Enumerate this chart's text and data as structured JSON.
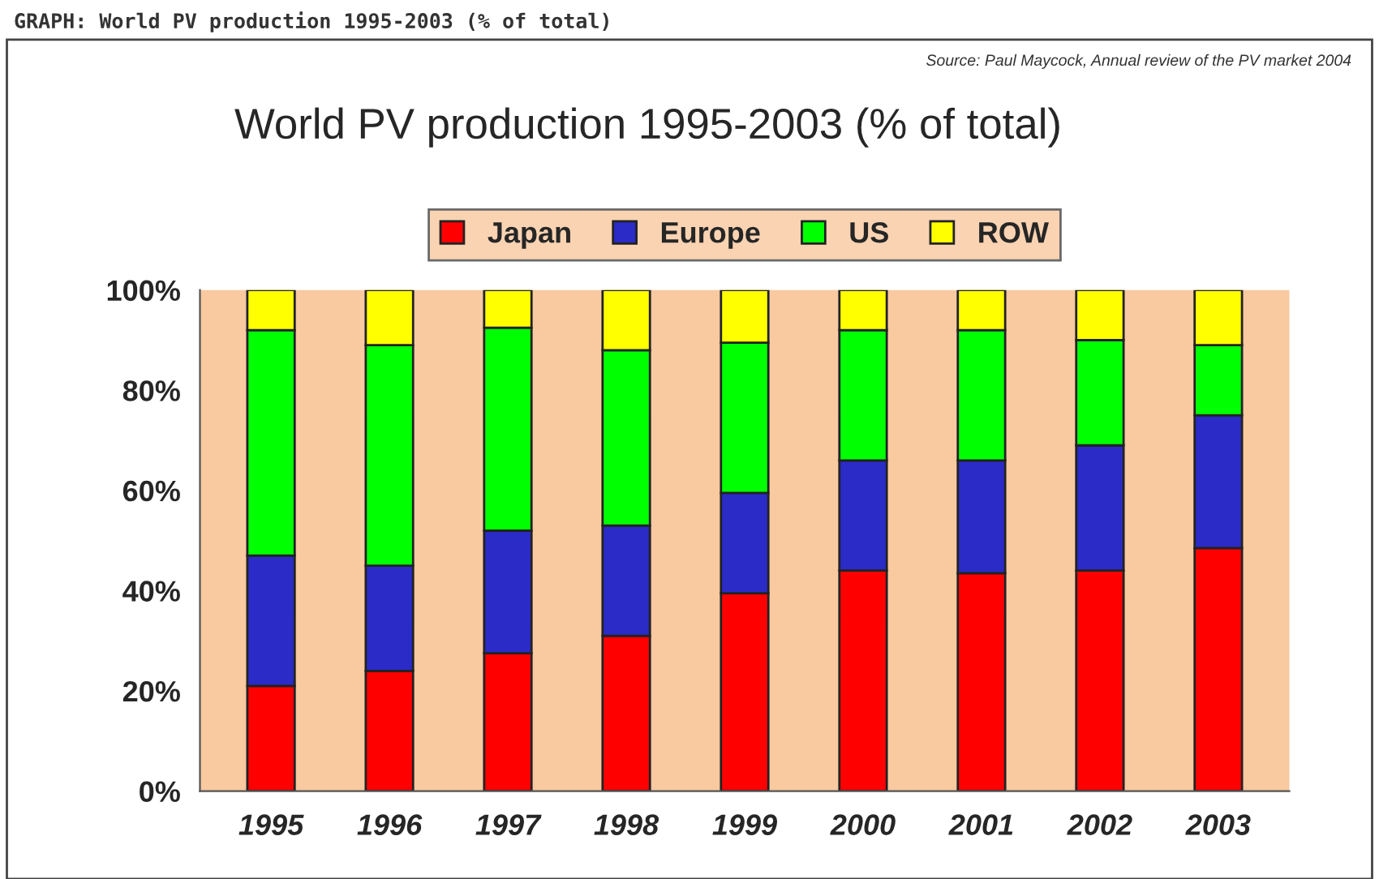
{
  "chart_data": {
    "type": "bar",
    "title": "World PV production 1995-2003 (% of total)",
    "annotations": [
      "GRAPH: World PV production 1995-2003 (% of total)",
      "Source: Paul Maycock, Annual review of the PV market 2004"
    ],
    "categories": [
      "1995",
      "1996",
      "1997",
      "1998",
      "1999",
      "2000",
      "2001",
      "2002",
      "2003"
    ],
    "stacked": true,
    "series": [
      {
        "name": "Japan",
        "color": "#ff0000",
        "values": [
          21,
          24,
          27.5,
          31,
          39.5,
          44,
          43.5,
          44,
          48.5
        ]
      },
      {
        "name": "Europe",
        "color": "#2b2bc8",
        "values": [
          26,
          21,
          24.5,
          22,
          20,
          22,
          22.5,
          25,
          26.5
        ]
      },
      {
        "name": "US",
        "color": "#00ff00",
        "values": [
          45,
          44,
          40.5,
          35,
          30,
          26,
          26,
          21,
          14
        ]
      },
      {
        "name": "ROW",
        "color": "#ffff00",
        "values": [
          8,
          11,
          7.5,
          12,
          10.5,
          8,
          8,
          10,
          11
        ]
      }
    ],
    "ylim": [
      0,
      100
    ],
    "yticks": [
      {
        "value": 0,
        "label": "0%"
      },
      {
        "value": 20,
        "label": "20%"
      },
      {
        "value": 40,
        "label": "40%"
      },
      {
        "value": 60,
        "label": "60%"
      },
      {
        "value": 80,
        "label": "80%"
      },
      {
        "value": 100,
        "label": "100%"
      }
    ],
    "grid": false,
    "legend": "top"
  }
}
